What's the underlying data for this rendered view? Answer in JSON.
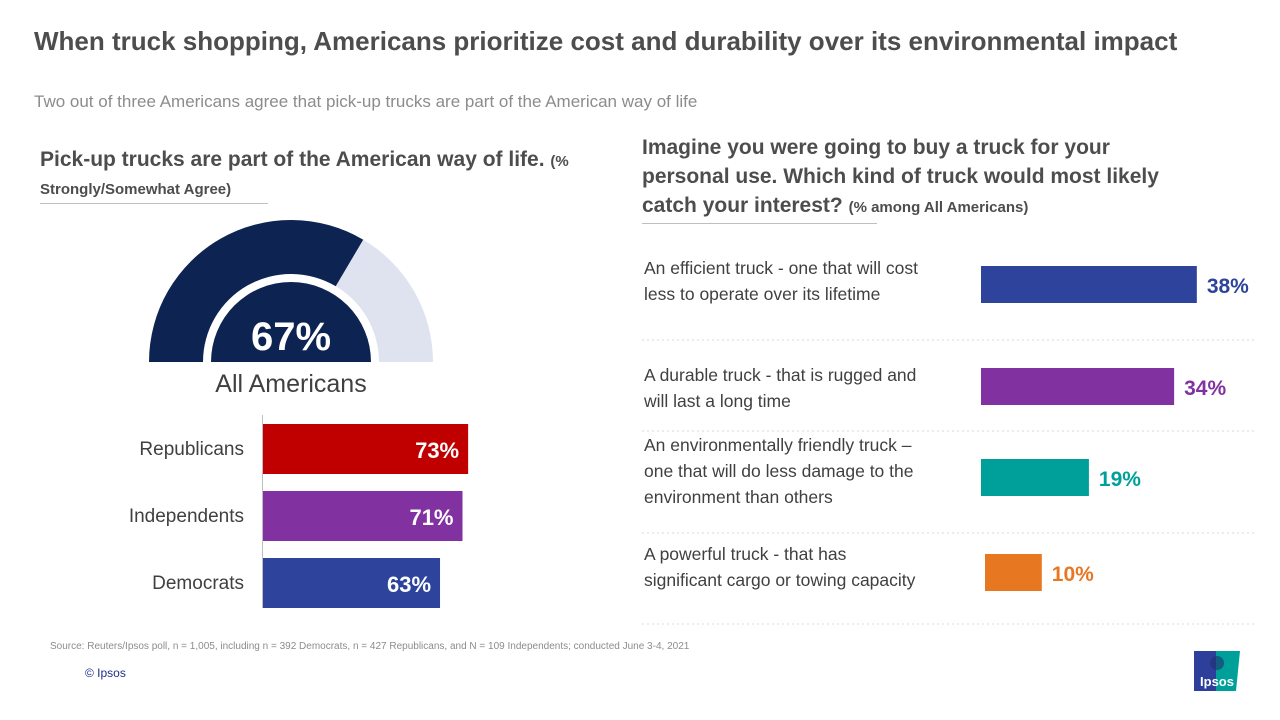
{
  "title": "When truck shopping, Americans prioritize cost and durability over its environmental impact",
  "subtitle": "Two out of three Americans agree that pick-up trucks are part of the American way of life",
  "footer": {
    "source": "Source: Reuters/Ipsos poll, n = 1,005, including n = 392 Democrats, n = 427 Republicans, and N = 109 Independents; conducted June 3-4, 2021",
    "copyright": "© Ipsos",
    "logo_text": "Ipsos"
  },
  "chart_data": [
    {
      "type": "gauge",
      "title": "Pick-up trucks are part of the American way of life.",
      "title_note": "(% Strongly/Somewhat Agree)",
      "value": 67,
      "value_label": "67%",
      "label": "All Americans",
      "colors": {
        "fill": "#0d2452",
        "rest": "#dfe3f0"
      }
    },
    {
      "type": "bar",
      "orientation": "horizontal",
      "categories": [
        "Republicans",
        "Independents",
        "Democrats"
      ],
      "values": [
        73,
        71,
        63
      ],
      "labels": [
        "73%",
        "71%",
        "63%"
      ],
      "colors": [
        "#c00000",
        "#8232a0",
        "#2e449c"
      ]
    },
    {
      "type": "bar",
      "orientation": "horizontal",
      "title": "Imagine you were going to buy a truck for your personal use. Which kind of truck would most likely catch your interest?",
      "title_note": "(% among All Americans)",
      "categories": [
        "An efficient truck - one that will cost less to operate over its lifetime",
        "A durable truck - that is rugged and will last a long time",
        "An environmentally friendly truck – one that will do less damage to the environment than others",
        "A powerful truck - that has significant cargo or towing capacity"
      ],
      "values": [
        38,
        34,
        19,
        10
      ],
      "labels": [
        "38%",
        "34%",
        "19%",
        "10%"
      ],
      "colors": [
        "#2e449c",
        "#8232a0",
        "#00a09a",
        "#e87722"
      ]
    }
  ]
}
